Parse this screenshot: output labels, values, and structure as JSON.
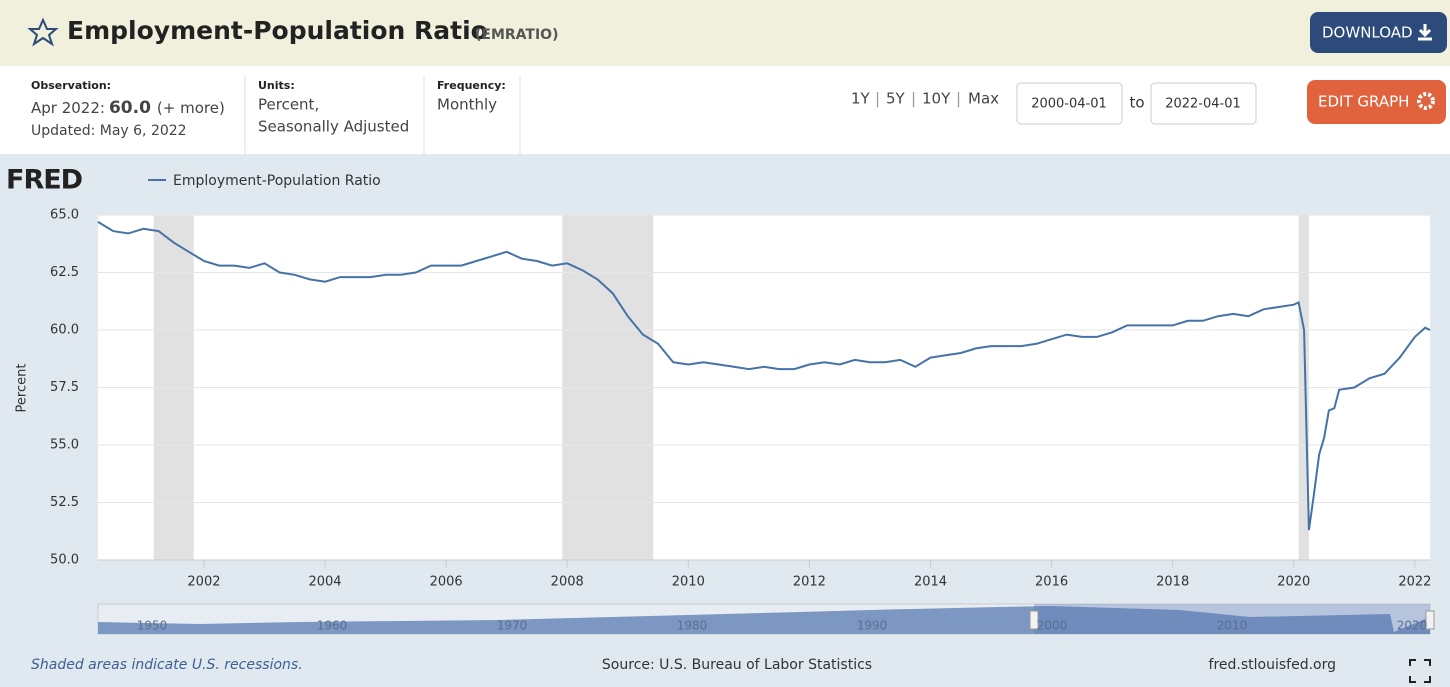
{
  "header": {
    "title": "Employment-Population Ratio",
    "series_id": "(EMRATIO)",
    "download": "DOWNLOAD"
  },
  "info": {
    "observation_label": "Observation:",
    "observation_date": "Apr 2022:",
    "observation_value": "60.0",
    "more": "(+ more)",
    "updated": "Updated: May 6, 2022",
    "units_label": "Units:",
    "units_line1": "Percent,",
    "units_line2": "Seasonally Adjusted",
    "frequency_label": "Frequency:",
    "frequency": "Monthly",
    "ranges": [
      "1Y",
      "5Y",
      "10Y",
      "Max"
    ],
    "start_date": "2000-04-01",
    "to": "to",
    "end_date": "2022-04-01",
    "edit": "EDIT GRAPH"
  },
  "logo": "FRED",
  "chart_data": {
    "type": "line",
    "ylabel": "Percent",
    "x": [
      2000.25,
      2000.5,
      2000.75,
      2001.0,
      2001.25,
      2001.5,
      2001.75,
      2002.0,
      2002.25,
      2002.5,
      2002.75,
      2003.0,
      2003.25,
      2003.5,
      2003.75,
      2004.0,
      2004.25,
      2004.5,
      2004.75,
      2005.0,
      2005.25,
      2005.5,
      2005.75,
      2006.0,
      2006.25,
      2006.5,
      2006.75,
      2007.0,
      2007.25,
      2007.5,
      2007.75,
      2008.0,
      2008.25,
      2008.5,
      2008.75,
      2009.0,
      2009.25,
      2009.5,
      2009.75,
      2010.0,
      2010.25,
      2010.5,
      2010.75,
      2011.0,
      2011.25,
      2011.5,
      2011.75,
      2012.0,
      2012.25,
      2012.5,
      2012.75,
      2013.0,
      2013.25,
      2013.5,
      2013.75,
      2014.0,
      2014.25,
      2014.5,
      2014.75,
      2015.0,
      2015.25,
      2015.5,
      2015.75,
      2016.0,
      2016.25,
      2016.5,
      2016.75,
      2017.0,
      2017.25,
      2017.5,
      2017.75,
      2018.0,
      2018.25,
      2018.5,
      2018.75,
      2019.0,
      2019.25,
      2019.5,
      2019.75,
      2020.0,
      2020.08,
      2020.17,
      2020.25,
      2020.33,
      2020.42,
      2020.5,
      2020.58,
      2020.67,
      2020.75,
      2021.0,
      2021.25,
      2021.5,
      2021.75,
      2022.0,
      2022.17,
      2022.25
    ],
    "series": [
      {
        "name": "Employment-Population Ratio",
        "color": "#4572a7",
        "values": [
          64.7,
          64.3,
          64.2,
          64.4,
          64.3,
          63.8,
          63.4,
          63.0,
          62.8,
          62.8,
          62.7,
          62.9,
          62.5,
          62.4,
          62.2,
          62.1,
          62.3,
          62.3,
          62.3,
          62.4,
          62.4,
          62.5,
          62.8,
          62.8,
          62.8,
          63.0,
          63.2,
          63.4,
          63.1,
          63.0,
          62.8,
          62.9,
          62.6,
          62.2,
          61.6,
          60.6,
          59.8,
          59.4,
          58.6,
          58.5,
          58.6,
          58.5,
          58.4,
          58.3,
          58.4,
          58.3,
          58.3,
          58.5,
          58.6,
          58.5,
          58.7,
          58.6,
          58.6,
          58.7,
          58.4,
          58.8,
          58.9,
          59.0,
          59.2,
          59.3,
          59.3,
          59.3,
          59.4,
          59.6,
          59.8,
          59.7,
          59.7,
          59.9,
          60.2,
          60.2,
          60.2,
          60.2,
          60.4,
          60.4,
          60.6,
          60.7,
          60.6,
          60.9,
          61.0,
          61.1,
          61.2,
          60.0,
          51.3,
          52.8,
          54.6,
          55.3,
          56.5,
          56.6,
          57.4,
          57.5,
          57.9,
          58.1,
          58.8,
          59.7,
          60.1,
          60.0
        ]
      }
    ],
    "recessions": [
      [
        2001.17,
        2001.83
      ],
      [
        2007.92,
        2009.42
      ],
      [
        2020.08,
        2020.25
      ]
    ],
    "xlim": [
      2000.25,
      2022.25
    ],
    "xticks": [
      2002,
      2004,
      2006,
      2008,
      2010,
      2012,
      2014,
      2016,
      2018,
      2020,
      2022
    ],
    "ylim": [
      50,
      65
    ],
    "yticks": [
      {
        "value": 50,
        "label": "50.0"
      },
      {
        "value": 52.5,
        "label": "52.5"
      },
      {
        "value": 55,
        "label": "55.0"
      },
      {
        "value": 57.5,
        "label": "57.5"
      },
      {
        "value": 60,
        "label": "60.0"
      },
      {
        "value": 62.5,
        "label": "62.5"
      },
      {
        "value": 65,
        "label": "65.0"
      }
    ],
    "grid": true,
    "navigator_labels": [
      "1950",
      "1960",
      "1970",
      "1980",
      "1990",
      "2000",
      "2010",
      "2020"
    ]
  },
  "footer": {
    "note": "Shaded areas indicate U.S. recessions.",
    "source": "Source: U.S. Bureau of Labor Statistics",
    "site": "fred.stlouisfed.org"
  }
}
